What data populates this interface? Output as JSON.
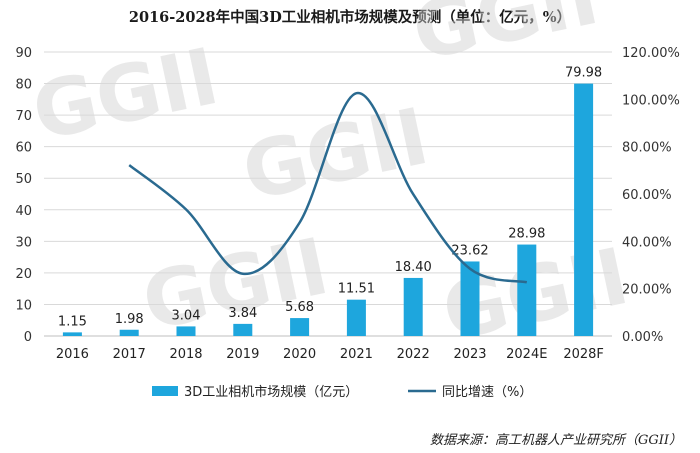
{
  "chart_data": {
    "type": "bar",
    "title": "2016-2028年中国3D工业相机市场规模及预测（单位：亿元，%）",
    "categories": [
      "2016",
      "2017",
      "2018",
      "2019",
      "2020",
      "2021",
      "2022",
      "2023",
      "2024E",
      "2028F"
    ],
    "series": [
      {
        "name": "3D工业相机市场规模（亿元）",
        "type": "bar",
        "axis": "left",
        "values": [
          1.15,
          1.98,
          3.04,
          3.84,
          5.68,
          11.51,
          18.4,
          23.62,
          28.98,
          79.98
        ],
        "labels": [
          "1.15",
          "1.98",
          "3.04",
          "3.84",
          "5.68",
          "11.51",
          "18.40",
          "23.62",
          "28.98",
          "79.98"
        ]
      },
      {
        "name": "同比增速（%）",
        "type": "line",
        "axis": "right",
        "values": [
          null,
          72.2,
          53.5,
          26.3,
          47.9,
          102.6,
          59.9,
          28.4,
          22.7,
          null
        ]
      }
    ],
    "y_left": {
      "range": [
        0,
        90
      ],
      "ticks": [
        "0",
        "10",
        "20",
        "30",
        "40",
        "50",
        "60",
        "70",
        "80",
        "90"
      ]
    },
    "y_right": {
      "range": [
        0,
        120
      ],
      "ticks": [
        "0.00%",
        "20.00%",
        "40.00%",
        "60.00%",
        "80.00%",
        "100.00%",
        "120.00%"
      ]
    },
    "legend": {
      "position": "bottom",
      "items": [
        "3D工业相机市场规模（亿元）",
        "同比增速（%）"
      ]
    },
    "colors": {
      "bar": "#1ea6dd",
      "line": "#2a6a90",
      "grid": "#d9d9d9",
      "watermark": "#cfcfcf"
    }
  },
  "watermark": "GGII",
  "source": "数据来源：高工机器人产业研究所（GGII）"
}
